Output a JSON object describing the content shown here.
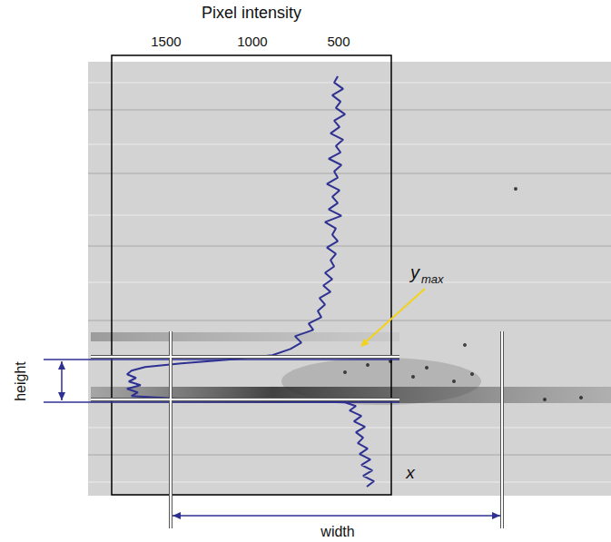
{
  "chart_data": {
    "type": "line",
    "xlabel": "Pixel intensity",
    "x": [
      505,
      526,
      474,
      537,
      489,
      516,
      463,
      526,
      495,
      547,
      474,
      516,
      489,
      558,
      484,
      526,
      505,
      568,
      495,
      537,
      505,
      558,
      484,
      579,
      516,
      537,
      505,
      568,
      516,
      547,
      526,
      579,
      537,
      589,
      547,
      611,
      579,
      621,
      600,
      674,
      647,
      753,
      716,
      779,
      884,
      1147,
      1411,
      1621,
      1700,
      1726,
      1674,
      1716,
      1647,
      1726,
      1663,
      1700,
      1411,
      884,
      463,
      400,
      437,
      368,
      411,
      347,
      400,
      358,
      389,
      332,
      379,
      316,
      368,
      305,
      358,
      295,
      337
    ],
    "values": [
      23,
      30,
      37,
      44,
      51,
      58,
      65,
      72,
      79,
      86,
      93,
      100,
      107,
      114,
      121,
      128,
      135,
      142,
      149,
      156,
      163,
      170,
      177,
      184,
      191,
      198,
      205,
      212,
      219,
      226,
      233,
      240,
      247,
      254,
      261,
      268,
      275,
      282,
      289,
      296,
      303,
      310,
      317,
      324,
      331,
      336,
      340,
      344,
      348,
      352,
      356,
      360,
      364,
      368,
      372,
      376,
      379,
      381,
      383,
      387,
      392,
      398,
      404,
      410,
      416,
      422,
      428,
      434,
      440,
      446,
      452,
      458,
      464,
      470,
      476
    ],
    "xlim": [
      1815,
      195
    ],
    "ylim": [
      485,
      0
    ],
    "xticks": [
      500,
      1000,
      1500
    ],
    "tick_labels": "x",
    "grid": false,
    "color": "#2e3192",
    "annotations": [
      {
        "text": "y",
        "subscript": "max"
      },
      {
        "text": "height"
      },
      {
        "text": "width"
      },
      {
        "text": "x"
      }
    ]
  }
}
